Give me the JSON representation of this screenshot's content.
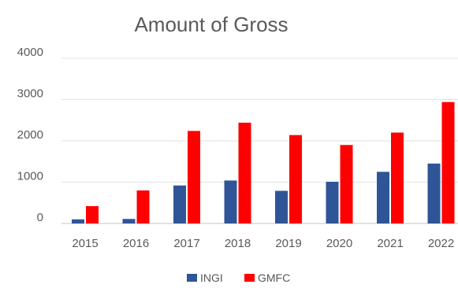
{
  "chart_data": {
    "type": "bar",
    "title": "Amount of Gross",
    "xlabel": "",
    "ylabel": "",
    "categories": [
      "2015",
      "2016",
      "2017",
      "2018",
      "2019",
      "2020",
      "2021",
      "2022"
    ],
    "series": [
      {
        "name": "INGI",
        "color": "#2f5597",
        "values": [
          100,
          110,
          920,
          1040,
          790,
          1010,
          1250,
          1450
        ]
      },
      {
        "name": "GMFC",
        "color": "#ff0000",
        "values": [
          420,
          800,
          2240,
          2440,
          2140,
          1900,
          2200,
          2940
        ]
      }
    ],
    "ylim": [
      0,
      4000
    ],
    "yticks": [
      "0",
      "1000",
      "2000",
      "3000",
      "4000"
    ],
    "grid": true,
    "legend_position": "bottom"
  }
}
